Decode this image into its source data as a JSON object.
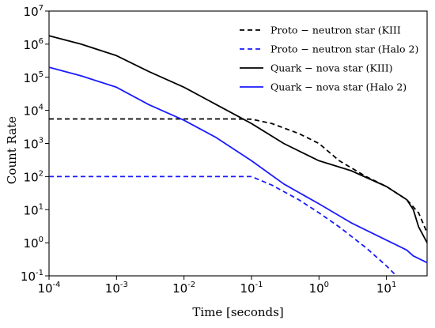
{
  "chart_data": {
    "type": "line",
    "xlabel": "Time [seconds]",
    "ylabel": "Count Rate",
    "xscale": "log",
    "yscale": "log",
    "xlim": [
      0.0001,
      40
    ],
    "ylim": [
      0.1,
      10000000
    ],
    "grid": false,
    "legend_position": "top-right",
    "x_ticks": [
      {
        "base": "10",
        "exp": "-4"
      },
      {
        "base": "10",
        "exp": "-3"
      },
      {
        "base": "10",
        "exp": "-2"
      },
      {
        "base": "10",
        "exp": "-1"
      },
      {
        "base": "10",
        "exp": "0"
      },
      {
        "base": "10",
        "exp": "1"
      }
    ],
    "y_ticks": [
      {
        "base": "10",
        "exp": "-1"
      },
      {
        "base": "10",
        "exp": "0"
      },
      {
        "base": "10",
        "exp": "1"
      },
      {
        "base": "10",
        "exp": "2"
      },
      {
        "base": "10",
        "exp": "3"
      },
      {
        "base": "10",
        "exp": "4"
      },
      {
        "base": "10",
        "exp": "5"
      },
      {
        "base": "10",
        "exp": "6"
      },
      {
        "base": "10",
        "exp": "7"
      }
    ],
    "series": [
      {
        "name": "Proto − neutron star (KIII",
        "color": "#000000",
        "dash": true,
        "points": [
          [
            0.0001,
            5500
          ],
          [
            0.001,
            5500
          ],
          [
            0.01,
            5500
          ],
          [
            0.05,
            5500
          ],
          [
            0.1,
            5400
          ],
          [
            0.2,
            4000
          ],
          [
            0.5,
            2000
          ],
          [
            1,
            1000
          ],
          [
            2,
            300
          ],
          [
            5,
            100
          ],
          [
            10,
            50
          ],
          [
            20,
            20
          ],
          [
            30,
            8
          ],
          [
            40,
            2
          ]
        ]
      },
      {
        "name": "Proto − neutron star (Halo 2)",
        "color": "#1a1aff",
        "dash": true,
        "points": [
          [
            0.0001,
            100
          ],
          [
            0.001,
            100
          ],
          [
            0.01,
            100
          ],
          [
            0.05,
            100
          ],
          [
            0.1,
            100
          ],
          [
            0.2,
            55
          ],
          [
            0.5,
            20
          ],
          [
            1,
            8
          ],
          [
            2,
            3
          ],
          [
            5,
            0.7
          ],
          [
            10,
            0.2
          ],
          [
            14,
            0.1
          ]
        ]
      },
      {
        "name": "Quark − nova star (KIII)",
        "color": "#000000",
        "dash": false,
        "points": [
          [
            0.0001,
            1800000
          ],
          [
            0.0003,
            1000000
          ],
          [
            0.001,
            450000
          ],
          [
            0.003,
            150000
          ],
          [
            0.01,
            50000
          ],
          [
            0.03,
            15000
          ],
          [
            0.1,
            4000
          ],
          [
            0.3,
            1000
          ],
          [
            1,
            300
          ],
          [
            3,
            150
          ],
          [
            10,
            50
          ],
          [
            20,
            20
          ],
          [
            25,
            10
          ],
          [
            30,
            3
          ],
          [
            40,
            1
          ]
        ]
      },
      {
        "name": "Quark − nova star (Halo 2)",
        "color": "#1a1aff",
        "dash": false,
        "points": [
          [
            0.0001,
            200000
          ],
          [
            0.0003,
            110000
          ],
          [
            0.001,
            50000
          ],
          [
            0.003,
            15000
          ],
          [
            0.01,
            5000
          ],
          [
            0.03,
            1500
          ],
          [
            0.1,
            300
          ],
          [
            0.3,
            60
          ],
          [
            1,
            15
          ],
          [
            3,
            4
          ],
          [
            10,
            1.2
          ],
          [
            20,
            0.6
          ],
          [
            25,
            0.4
          ],
          [
            40,
            0.25
          ]
        ]
      }
    ]
  }
}
